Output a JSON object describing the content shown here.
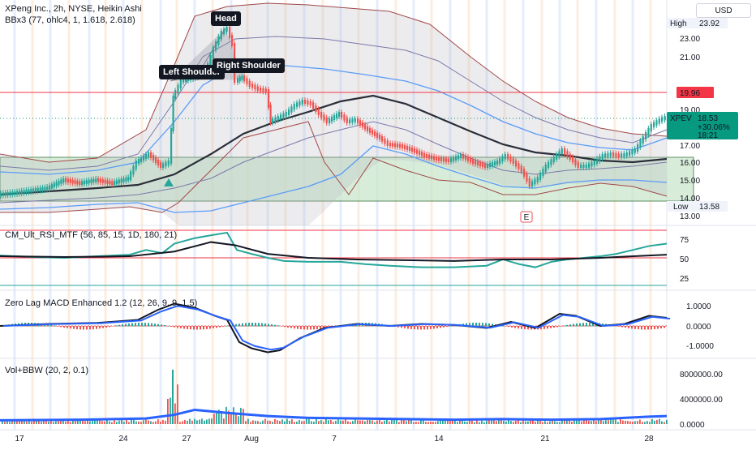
{
  "header": {
    "symbol_line": "XPeng Inc., 2h, NYSE, Heikin Ashi",
    "bb_line": "BBx3 (77, ohlc4, 1, 1.618, 2.618)",
    "currency": "USD"
  },
  "annotations": {
    "head": "Head",
    "left_shoulder": "Left Shoulder",
    "right_shoulder": "Right Shoulder",
    "earnings": "E"
  },
  "price_axis": {
    "ticks": [
      "23.00",
      "21.00",
      "19.00",
      "17.00",
      "16.00",
      "15.00",
      "14.00",
      "13.00"
    ],
    "high_label": "High",
    "high_value": "23.92",
    "low_label": "Low",
    "low_value": "13.58",
    "resistance_value": "19.96",
    "last_symbol": "XPEV",
    "last_price": "18.53",
    "last_change": "+30.06%",
    "countdown": "18:21"
  },
  "rsi_panel": {
    "title": "CM_Ult_RSI_MTF (56, 85, 15, 1D, 180, 21)",
    "ticks": [
      "75",
      "50",
      "25"
    ]
  },
  "macd_panel": {
    "title": "Zero Lag MACD Enhanced 1.2 (12, 26, 9, 9, 1.5)",
    "ticks": [
      "1.0000",
      "0.0000",
      "-1.0000"
    ]
  },
  "vol_panel": {
    "title": "Vol+BBW (20, 2, 0.1)",
    "ticks": [
      "8000000.00",
      "4000000.00",
      "0.0000"
    ]
  },
  "time_axis": {
    "ticks": [
      "17",
      "24",
      "27",
      "Aug",
      "7",
      "14",
      "21",
      "28"
    ]
  },
  "colors": {
    "bull": "#26a69a",
    "bear": "#ef5350",
    "resistance": "#f23645",
    "box_fill": "#c8e6c9",
    "box_border": "#1b5e20",
    "bb_mid": "#2a2e39",
    "bb_inner": "#5b9cf6",
    "bb_outer": "#a04848",
    "last_bg": "#089981"
  }
}
